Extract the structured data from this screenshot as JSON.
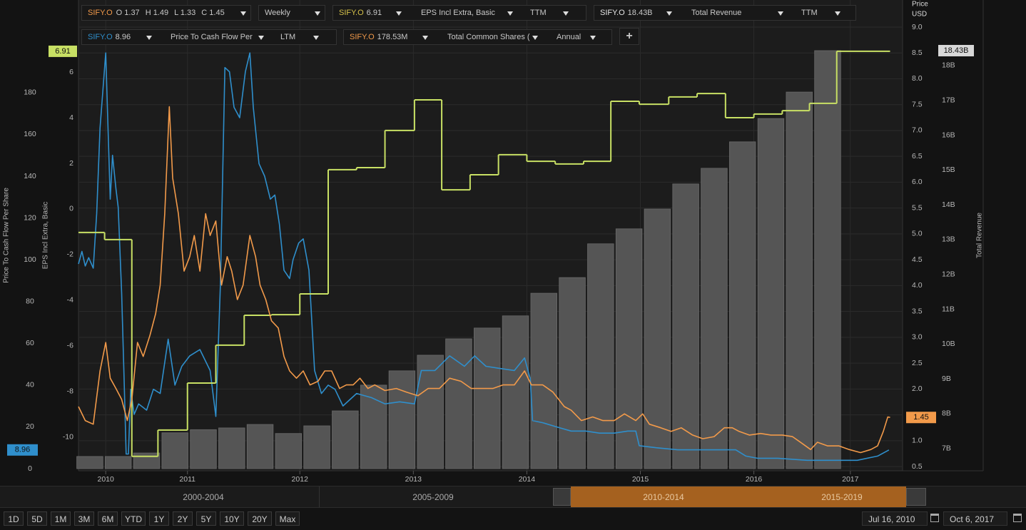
{
  "toolbar": {
    "price_study": {
      "symbol": "SIFY.O",
      "open": "O 1.37",
      "high": "H 1.49",
      "low": "L 1.33",
      "close": "C 1.45",
      "interval": "Weekly"
    },
    "studies": [
      {
        "symbol": "SIFY.O",
        "value": "6.91",
        "field": "EPS Incl Extra, Basic",
        "period": "TTM"
      },
      {
        "symbol": "SIFY.O",
        "value": "18.43B",
        "field": "Total Revenue",
        "period": "TTM"
      },
      {
        "symbol": "SIFY.O",
        "value": "8.96",
        "field": "Price To Cash Flow Per",
        "period": "LTM"
      },
      {
        "symbol": "SIFY.O",
        "value": "178.53M",
        "field": "Total Common Shares (",
        "period": "Annual"
      }
    ],
    "add_button": "+"
  },
  "chart_data": {
    "type": "combo",
    "grid": true,
    "xlim": [
      2010.05,
      2017.31
    ],
    "xticks": [
      {
        "value": 2010.29,
        "label": "2010"
      },
      {
        "value": 2011.01,
        "label": "2011"
      },
      2012,
      2013,
      2014,
      2015,
      2016,
      {
        "value": 2016.85,
        "label": "2017"
      }
    ],
    "y_axes": [
      {
        "title": "Price To Cash Flow Per Share",
        "lim": [
          0,
          214.1
        ],
        "ticks": [
          0,
          20,
          40,
          60,
          80,
          100,
          120,
          140,
          160,
          180
        ]
      },
      {
        "title": "EPS Incl Extra, Basic",
        "lim": [
          -11.38,
          8.22
        ],
        "ticks": [
          -10,
          -8,
          -6,
          -4,
          -2,
          0,
          2,
          4,
          6
        ]
      },
      {
        "title": "Price",
        "unit": "USD",
        "lim": [
          0.46,
          9.11
        ],
        "ticks": [
          0.5,
          {
            "value": 1,
            "label": "1.0"
          },
          1.5,
          {
            "value": 2,
            "label": "2.0"
          },
          2.5,
          {
            "value": 3,
            "label": "3.0"
          },
          3.5,
          {
            "value": 4,
            "label": "4.0"
          },
          4.5,
          {
            "value": 5,
            "label": "5.0"
          },
          5.5,
          {
            "value": 6,
            "label": "6.0"
          },
          6.5,
          {
            "value": 7,
            "label": "7.0"
          },
          7.5,
          {
            "value": 8,
            "label": "8.0"
          },
          8.5,
          {
            "value": 9,
            "label": "9.0"
          }
        ]
      },
      {
        "title": "Total Revenue",
        "lim": [
          6.42,
          19.27
        ],
        "ticks": [
          {
            "value": 7,
            "label": "7B"
          },
          {
            "value": 8,
            "label": "8B"
          },
          {
            "value": 9,
            "label": "9B"
          },
          {
            "value": 10,
            "label": "10B"
          },
          {
            "value": 11,
            "label": "11B"
          },
          {
            "value": 12,
            "label": "12B"
          },
          {
            "value": 13,
            "label": "13B"
          },
          {
            "value": 14,
            "label": "14B"
          },
          {
            "value": 15,
            "label": "15B"
          },
          {
            "value": 16,
            "label": "16B"
          },
          {
            "value": 17,
            "label": "17B"
          },
          {
            "value": 18,
            "label": "18B"
          }
        ]
      }
    ],
    "series": [
      {
        "type": "bar",
        "axis": 3,
        "color": "#555555",
        "x": [
          2010.15,
          2010.4,
          2010.65,
          2010.9,
          2011.15,
          2011.4,
          2011.65,
          2011.9,
          2012.15,
          2012.4,
          2012.65,
          2012.9,
          2013.15,
          2013.4,
          2013.65,
          2013.9,
          2014.15,
          2014.4,
          2014.65,
          2014.9,
          2015.15,
          2015.4,
          2015.65,
          2015.9,
          2016.15,
          2016.4,
          2016.65
        ],
        "values": [
          6.77,
          6.77,
          6.87,
          7.45,
          7.54,
          7.59,
          7.69,
          7.43,
          7.65,
          8.08,
          8.82,
          9.23,
          9.68,
          10.15,
          10.46,
          10.81,
          11.46,
          11.91,
          12.88,
          13.31,
          13.88,
          14.6,
          15.05,
          15.81,
          16.48,
          17.24,
          18.43
        ],
        "value_labels": [
          null,
          null,
          null,
          null,
          null,
          null,
          null,
          null,
          null,
          null,
          null,
          null,
          null,
          null,
          null,
          null,
          null,
          null,
          null,
          null,
          null,
          null,
          null,
          null,
          null,
          null,
          "18.43B"
        ]
      },
      {
        "type": "line",
        "axis": 0,
        "color": "#2f8fcc",
        "x": [
          2010.05,
          2010.08,
          2010.11,
          2010.14,
          2010.18,
          2010.21,
          2010.24,
          2010.29,
          2010.31,
          2010.33,
          2010.35,
          2010.38,
          2010.4,
          2010.43,
          2010.45,
          2010.47,
          2010.49,
          2010.51,
          2010.54,
          2010.58,
          2010.65,
          2010.71,
          2010.77,
          2010.84,
          2010.9,
          2010.96,
          2011.03,
          2011.12,
          2011.21,
          2011.26,
          2011.3,
          2011.34,
          2011.38,
          2011.42,
          2011.47,
          2011.52,
          2011.56,
          2011.59,
          2011.64,
          2011.69,
          2011.74,
          2011.78,
          2011.82,
          2011.86,
          2011.91,
          2011.94,
          2011.99,
          2012.03,
          2012.08,
          2012.13,
          2012.19,
          2012.25,
          2012.31,
          2012.38,
          2012.44,
          2012.5,
          2012.63,
          2012.75,
          2012.88,
          2013.01,
          2013.07,
          2013.19,
          2013.32,
          2013.45,
          2013.54,
          2013.64,
          2013.76,
          2013.89,
          2013.98,
          2014.03,
          2014.05,
          2014.14,
          2014.26,
          2014.39,
          2014.52,
          2014.64,
          2014.77,
          2014.89,
          2014.96,
          2014.99,
          2015.14,
          2015.33,
          2015.52,
          2015.71,
          2015.84,
          2015.93,
          2016.03,
          2016.21,
          2016.47,
          2016.65,
          2016.91,
          2017.09,
          2017.19
        ],
        "values": [
          98,
          104,
          97,
          101,
          96,
          122,
          163,
          199,
          163,
          129,
          150,
          134,
          125,
          84,
          47,
          7,
          7,
          38,
          26,
          31,
          28,
          38,
          36,
          62,
          40,
          49,
          54,
          57,
          47,
          25,
          88,
          192,
          190,
          173,
          168,
          190,
          199,
          173,
          146,
          140,
          129,
          131,
          117,
          95,
          91,
          100,
          108,
          110,
          95,
          47,
          36,
          40,
          38,
          30,
          33,
          36,
          34,
          31,
          32,
          31,
          47,
          47,
          54,
          49,
          54,
          49,
          48,
          47,
          53,
          43,
          23,
          22,
          20,
          18,
          18,
          17,
          17,
          18,
          18,
          11,
          10,
          9,
          9,
          9,
          9,
          6,
          5,
          5,
          4,
          4,
          4,
          6,
          8.96
        ]
      },
      {
        "type": "step",
        "axis": 1,
        "color": "#c8e064",
        "x": [
          2010.05,
          2010.28,
          2010.52,
          2010.75,
          2011.01,
          2011.26,
          2011.51,
          2011.75,
          2012.0,
          2012.25,
          2012.5,
          2012.75,
          2013.01,
          2013.25,
          2013.5,
          2013.75,
          2014.0,
          2014.25,
          2014.5,
          2014.74,
          2014.99,
          2015.25,
          2015.5,
          2015.75,
          2016.0,
          2016.25,
          2016.49,
          2016.73
        ],
        "values": [
          -1.03,
          -1.34,
          -10.84,
          -9.69,
          -7.63,
          -5.97,
          -4.66,
          -4.63,
          -3.72,
          1.72,
          1.81,
          3.44,
          4.78,
          0.84,
          1.5,
          2.38,
          2.09,
          1.97,
          2.09,
          4.72,
          4.59,
          4.91,
          5.06,
          4.0,
          4.16,
          4.31,
          4.63,
          6.91
        ]
      },
      {
        "type": "line",
        "axis": 2,
        "color": "#f29a4a",
        "x": [
          2010.05,
          2010.11,
          2010.18,
          2010.24,
          2010.29,
          2010.33,
          2010.38,
          2010.43,
          2010.48,
          2010.52,
          2010.57,
          2010.62,
          2010.68,
          2010.73,
          2010.77,
          2010.81,
          2010.85,
          2010.88,
          2010.93,
          2010.98,
          2011.03,
          2011.07,
          2011.12,
          2011.17,
          2011.21,
          2011.26,
          2011.31,
          2011.36,
          2011.4,
          2011.45,
          2011.5,
          2011.56,
          2011.61,
          2011.65,
          2011.7,
          2011.75,
          2011.81,
          2011.86,
          2011.91,
          2011.97,
          2012.03,
          2012.09,
          2012.16,
          2012.22,
          2012.28,
          2012.35,
          2012.41,
          2012.47,
          2012.53,
          2012.6,
          2012.66,
          2012.75,
          2012.85,
          2012.94,
          2013.04,
          2013.13,
          2013.23,
          2013.32,
          2013.42,
          2013.51,
          2013.6,
          2013.7,
          2013.79,
          2013.89,
          2013.98,
          2014.04,
          2014.14,
          2014.23,
          2014.33,
          2014.39,
          2014.48,
          2014.58,
          2014.67,
          2014.77,
          2014.86,
          2014.96,
          2015.02,
          2015.08,
          2015.18,
          2015.27,
          2015.36,
          2015.46,
          2015.55,
          2015.65,
          2015.74,
          2015.81,
          2015.87,
          2015.96,
          2016.06,
          2016.15,
          2016.25,
          2016.34,
          2016.43,
          2016.5,
          2016.56,
          2016.65,
          2016.75,
          2016.84,
          2016.94,
          2017.03,
          2017.09,
          2017.14,
          2017.18,
          2017.2
        ],
        "values": [
          1.66,
          1.39,
          1.32,
          2.35,
          2.9,
          2.21,
          2.01,
          1.8,
          1.39,
          1.8,
          2.9,
          2.63,
          3.04,
          3.46,
          4.01,
          5.39,
          7.46,
          6.08,
          5.39,
          4.28,
          4.56,
          4.97,
          4.28,
          5.39,
          4.97,
          5.25,
          4.01,
          4.56,
          4.28,
          3.73,
          4.01,
          4.97,
          4.56,
          4.01,
          3.73,
          3.32,
          3.18,
          2.63,
          2.35,
          2.21,
          2.35,
          2.08,
          2.15,
          2.35,
          2.35,
          2.01,
          2.08,
          2.08,
          2.21,
          2.01,
          2.08,
          1.97,
          2.01,
          1.94,
          1.87,
          2.01,
          2.01,
          2.21,
          2.15,
          2.01,
          2.01,
          2.01,
          2.08,
          2.08,
          2.35,
          2.08,
          2.08,
          1.94,
          1.66,
          1.59,
          1.39,
          1.46,
          1.39,
          1.39,
          1.52,
          1.39,
          1.52,
          1.32,
          1.25,
          1.18,
          1.25,
          1.11,
          1.04,
          1.08,
          1.25,
          1.25,
          1.18,
          1.11,
          1.14,
          1.11,
          1.11,
          1.08,
          0.94,
          0.83,
          0.97,
          0.9,
          0.9,
          0.83,
          0.77,
          0.83,
          0.9,
          1.18,
          1.46,
          1.45
        ]
      }
    ]
  },
  "navigator": {
    "ranges": [
      "2000-2004",
      "2005-2009",
      "2010-2014",
      "2015-2019"
    ]
  },
  "range_buttons": [
    "1D",
    "5D",
    "1M",
    "3M",
    "6M",
    "YTD",
    "1Y",
    "2Y",
    "5Y",
    "10Y",
    "20Y",
    "Max"
  ],
  "date_range": {
    "start": "Jul 16, 2010",
    "end": "Oct 6, 2017"
  }
}
